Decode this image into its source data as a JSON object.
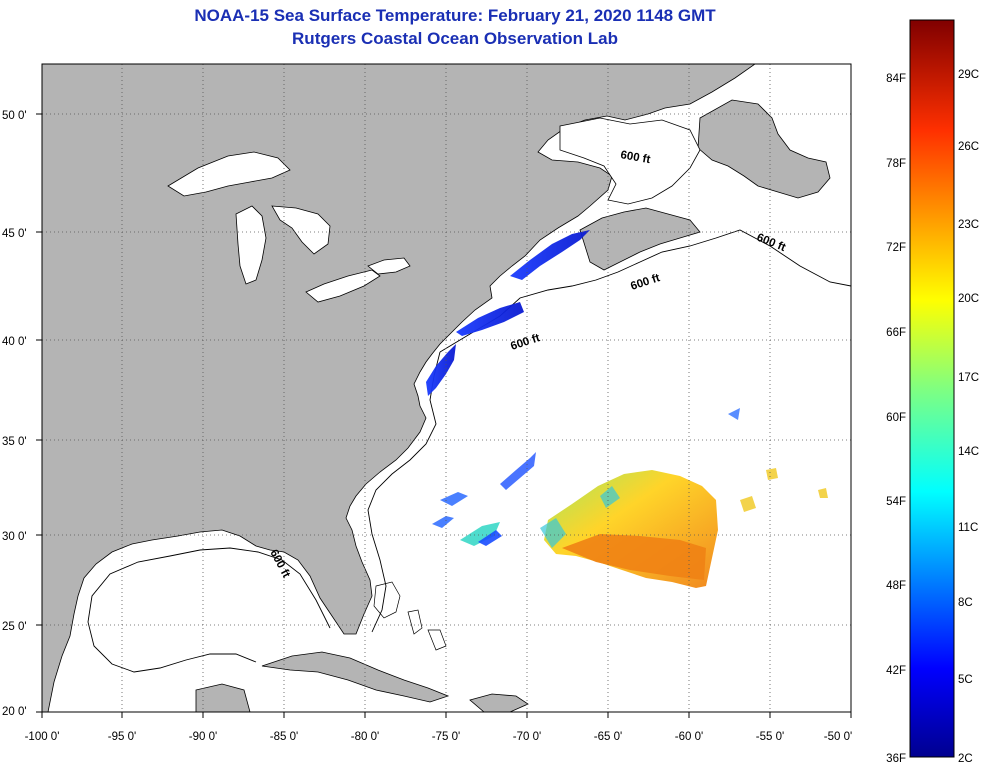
{
  "title": "NOAA-15 Sea Surface Temperature:  February 21, 2020 1148 GMT",
  "subtitle": "Rutgers Coastal Ocean Observation Lab",
  "lat_labels": [
    "50 0'",
    "45 0'",
    "40 0'",
    "35 0'",
    "30 0'",
    "25 0'",
    "20 0'"
  ],
  "lon_labels": [
    "-100 0'",
    "-95 0'",
    "-90 0'",
    "-85 0'",
    "-80 0'",
    "-75 0'",
    "-70 0'",
    "-65 0'",
    "-60 0'",
    "-55 0'",
    "-50 0'"
  ],
  "isobath_labels": [
    "600 ft",
    "600 ft",
    "600 ft",
    "600 ft",
    "600 ft"
  ],
  "colorbar": {
    "fahrenheit": [
      "84F",
      "78F",
      "72F",
      "66F",
      "60F",
      "54F",
      "48F",
      "42F",
      "36F"
    ],
    "celsius": [
      "29C",
      "26C",
      "23C",
      "20C",
      "17C",
      "14C",
      "11C",
      "8C",
      "5C",
      "2C"
    ]
  },
  "colors": {
    "land": "#b4b4b4",
    "ocean": "#ffffff",
    "title": "#1a2fb4",
    "grid": "#555555"
  }
}
